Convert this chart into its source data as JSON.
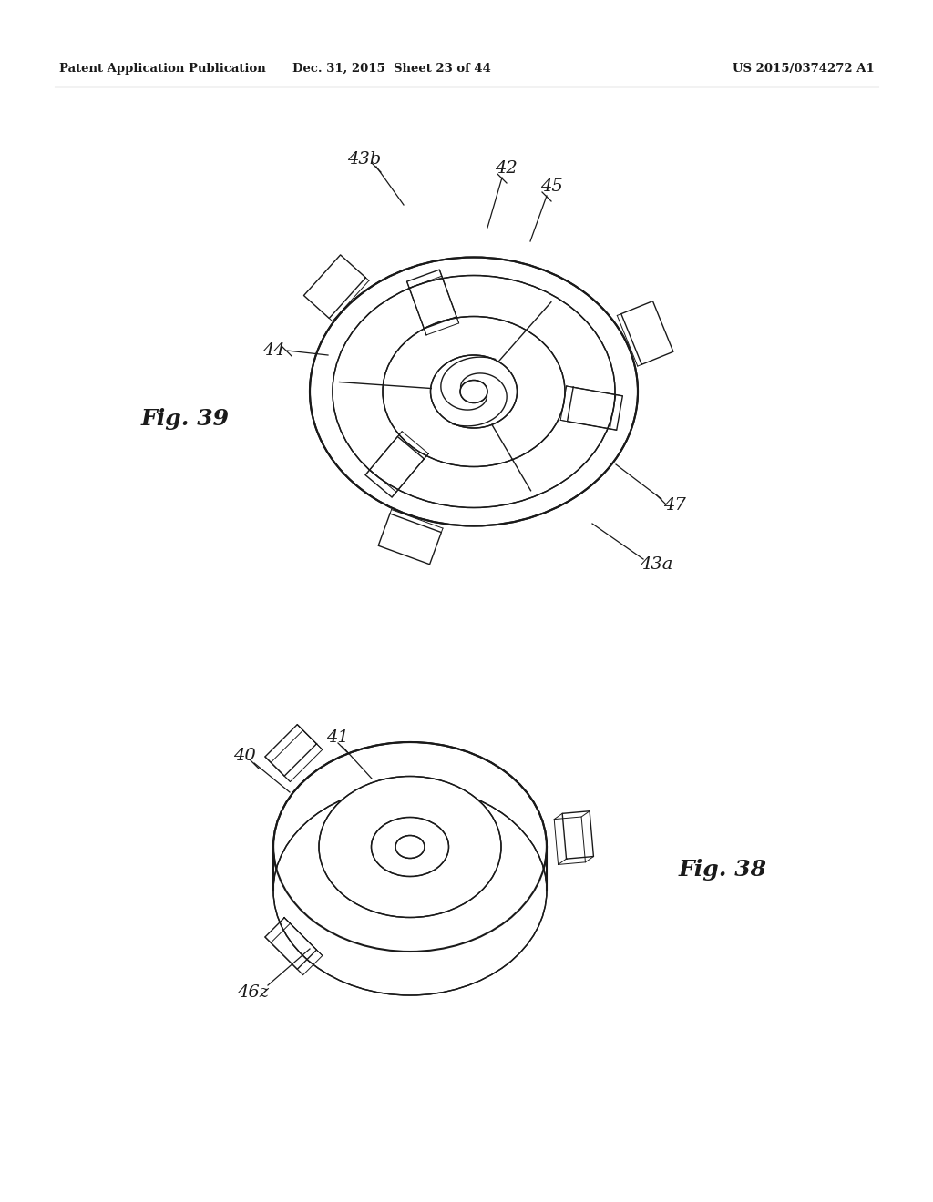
{
  "background_color": "#ffffff",
  "header_left": "Patent Application Publication",
  "header_mid": "Dec. 31, 2015  Sheet 23 of 44",
  "header_right": "US 2015/0374272 A1",
  "fig38_label": "Fig. 38",
  "fig39_label": "Fig. 39",
  "line_color": "#1a1a1a",
  "text_color": "#1a1a1a"
}
